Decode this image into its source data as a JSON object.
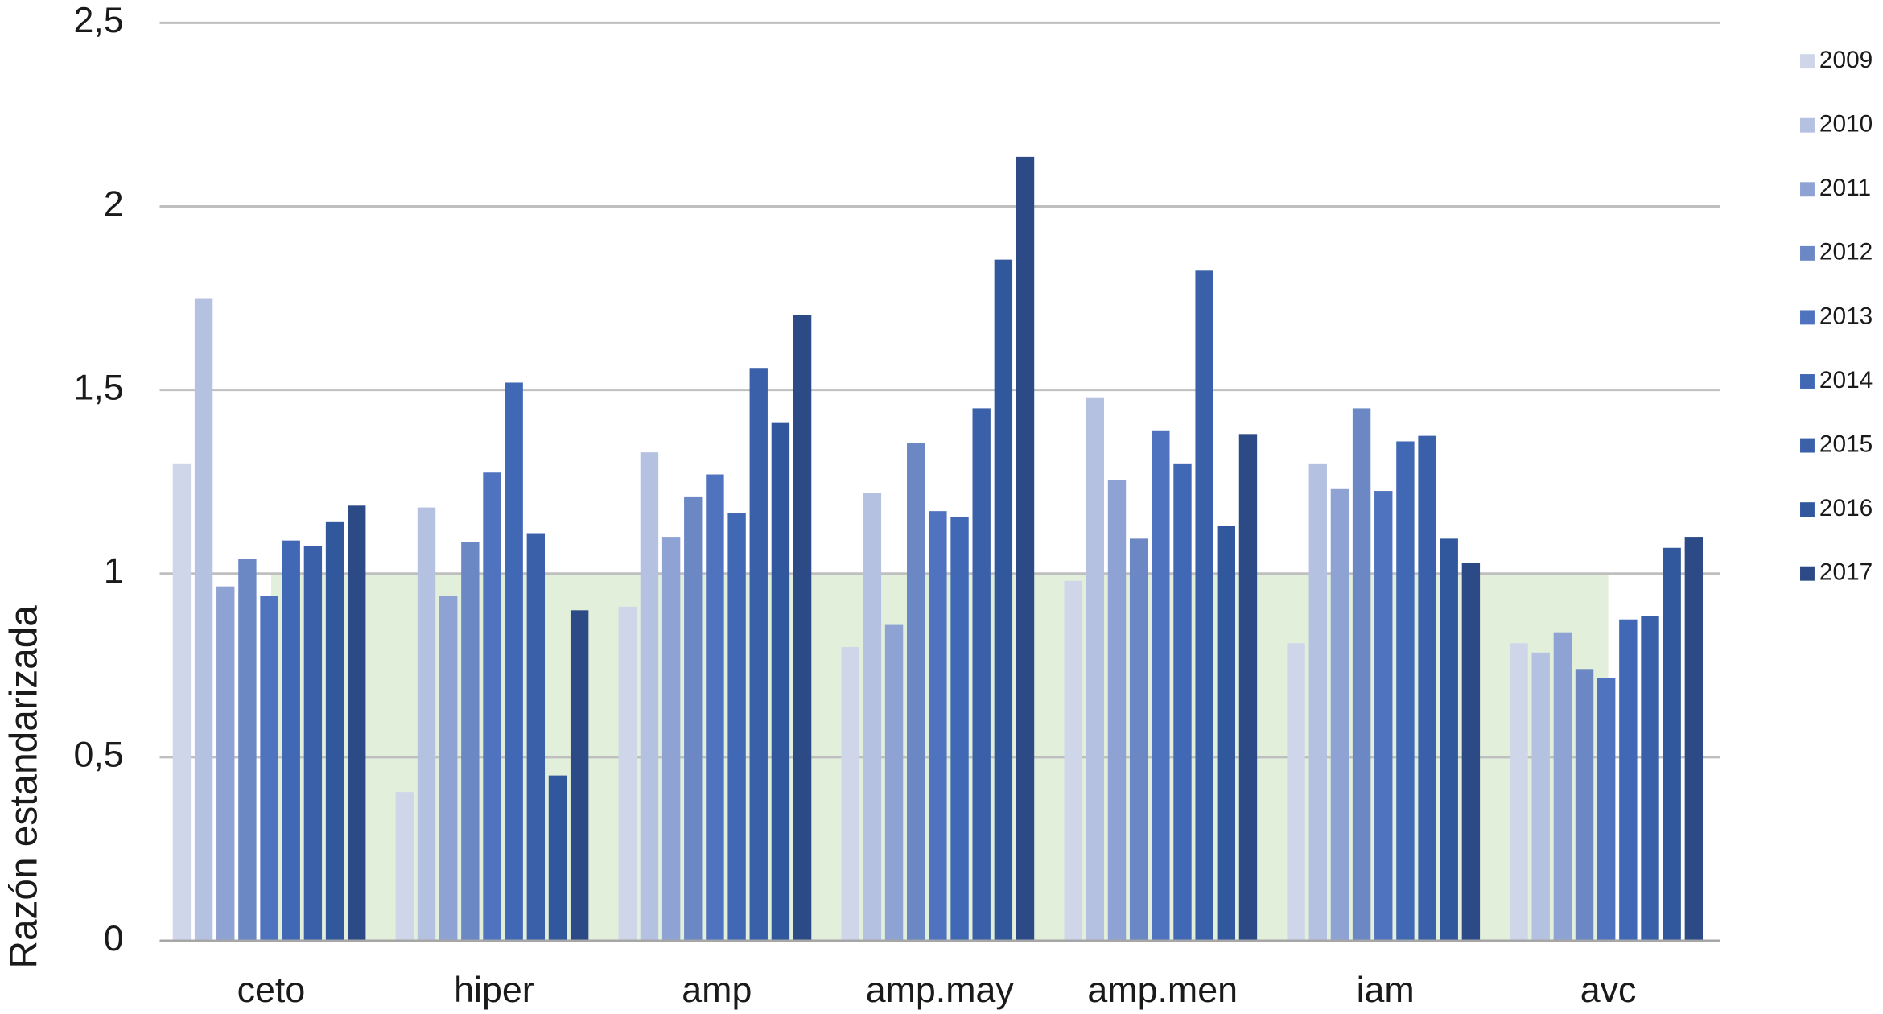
{
  "chart_data": {
    "type": "bar",
    "y_label": "Razón estandarizada",
    "categories": [
      "ceto",
      "hiper",
      "amp",
      "amp.may",
      "amp.men",
      "iam",
      "avc"
    ],
    "series": [
      {
        "name": "2009",
        "color": "#cfd6ea",
        "values": [
          1.3,
          0.405,
          0.91,
          0.8,
          0.98,
          0.81,
          0.81
        ]
      },
      {
        "name": "2010",
        "color": "#b5c1e0",
        "values": [
          1.75,
          1.18,
          1.33,
          1.22,
          1.48,
          1.3,
          0.785
        ]
      },
      {
        "name": "2011",
        "color": "#8ea3d4",
        "values": [
          0.965,
          0.94,
          1.1,
          0.86,
          1.255,
          1.23,
          0.84
        ]
      },
      {
        "name": "2012",
        "color": "#6b87c4",
        "values": [
          1.04,
          1.085,
          1.21,
          1.355,
          1.095,
          1.45,
          0.74
        ]
      },
      {
        "name": "2013",
        "color": "#4f73be",
        "values": [
          0.94,
          1.275,
          1.27,
          1.17,
          1.39,
          1.225,
          0.715
        ]
      },
      {
        "name": "2014",
        "color": "#4168b5",
        "values": [
          1.09,
          1.52,
          1.165,
          1.155,
          1.3,
          1.36,
          0.875
        ]
      },
      {
        "name": "2015",
        "color": "#3a60aa",
        "values": [
          1.075,
          1.11,
          1.56,
          1.45,
          1.825,
          1.375,
          0.885
        ]
      },
      {
        "name": "2016",
        "color": "#31579d",
        "values": [
          1.14,
          0.45,
          1.41,
          1.855,
          1.13,
          1.095,
          1.07
        ]
      },
      {
        "name": "2017",
        "color": "#2b4a86",
        "values": [
          1.185,
          0.9,
          1.705,
          2.135,
          1.38,
          1.03,
          1.1
        ]
      }
    ],
    "ylim": [
      0,
      2.5
    ],
    "yticks": [
      0,
      {
        "value": 0.5,
        "label": "0,5"
      },
      1,
      {
        "value": 1.5,
        "label": "1,5"
      },
      2,
      {
        "value": 2.5,
        "label": "2,5"
      }
    ],
    "grid": true,
    "reference_band": {
      "from": 0,
      "to": 1,
      "color": "#e2efda"
    },
    "legend": "right"
  }
}
